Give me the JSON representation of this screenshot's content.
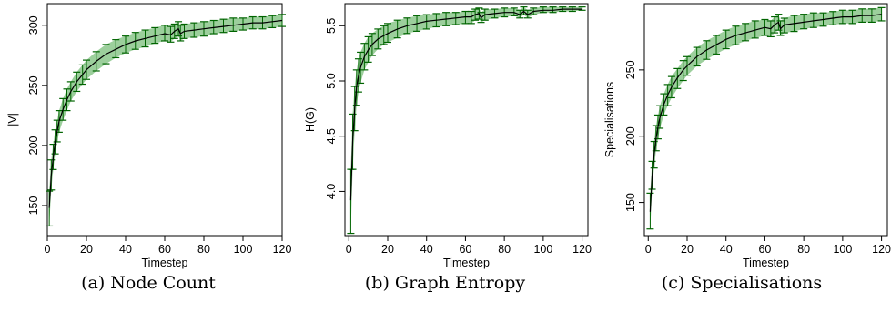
{
  "chart_data": [
    {
      "type": "line",
      "caption": "(a) Node Count",
      "xlabel": "Timestep",
      "ylabel": "|V|",
      "xlim": [
        0,
        120
      ],
      "ylim": [
        125,
        318
      ],
      "xticks": [
        0,
        20,
        40,
        60,
        80,
        100,
        120
      ],
      "yticks": [
        150,
        200,
        250,
        300
      ],
      "colors": {
        "line": "#000000",
        "band": "#4aa84a",
        "errorbar": "#006400"
      },
      "series": [
        {
          "x": [
            1,
            2,
            3,
            4,
            5,
            6,
            8,
            10,
            12,
            15,
            18,
            20,
            25,
            30,
            35,
            40,
            45,
            50,
            55,
            60,
            63,
            65,
            67,
            68,
            70,
            75,
            80,
            85,
            90,
            95,
            100,
            105,
            110,
            115,
            120
          ],
          "y": [
            148,
            175,
            190,
            203,
            212,
            220,
            230,
            238,
            245,
            253,
            259,
            263,
            270,
            276,
            280,
            284,
            287,
            289,
            291,
            293,
            292,
            295,
            297,
            293,
            295,
            296,
            297,
            298,
            299,
            300,
            301,
            302,
            302,
            303,
            304
          ],
          "ylow": [
            133,
            163,
            180,
            193,
            203,
            211,
            221,
            229,
            237,
            245,
            251,
            255,
            262,
            268,
            273,
            277,
            280,
            282,
            285,
            287,
            286,
            289,
            291,
            287,
            289,
            290,
            291,
            293,
            294,
            295,
            296,
            297,
            297,
            298,
            299
          ],
          "yhigh": [
            162,
            188,
            201,
            213,
            221,
            229,
            239,
            247,
            253,
            261,
            267,
            271,
            278,
            284,
            288,
            291,
            294,
            296,
            298,
            300,
            299,
            301,
            303,
            300,
            301,
            302,
            303,
            304,
            305,
            306,
            306,
            307,
            307,
            308,
            309
          ]
        }
      ]
    },
    {
      "type": "line",
      "caption": "(b) Graph Entropy",
      "xlabel": "Timestep",
      "ylabel": "H(G)",
      "xlim": [
        -2,
        123
      ],
      "ylim": [
        3.6,
        5.7
      ],
      "xticks": [
        0,
        20,
        40,
        60,
        80,
        100,
        120
      ],
      "yticks": [
        "4.0",
        "4.5",
        "5.0",
        "5.5"
      ],
      "colors": {
        "line": "#000000",
        "band": "#4aa84a",
        "errorbar": "#006400"
      },
      "series": [
        {
          "x": [
            1,
            2,
            3,
            4,
            5,
            6,
            8,
            10,
            12,
            15,
            18,
            20,
            25,
            30,
            35,
            40,
            45,
            50,
            55,
            60,
            63,
            65,
            67,
            68,
            70,
            75,
            80,
            85,
            88,
            90,
            92,
            95,
            100,
            105,
            110,
            115,
            120
          ],
          "y": [
            3.92,
            4.45,
            4.75,
            4.95,
            5.05,
            5.12,
            5.22,
            5.28,
            5.33,
            5.38,
            5.41,
            5.43,
            5.47,
            5.5,
            5.52,
            5.54,
            5.55,
            5.56,
            5.57,
            5.58,
            5.58,
            5.6,
            5.61,
            5.57,
            5.6,
            5.61,
            5.62,
            5.62,
            5.6,
            5.63,
            5.6,
            5.63,
            5.64,
            5.64,
            5.65,
            5.65,
            5.65
          ],
          "ylow": [
            3.62,
            4.2,
            4.55,
            4.78,
            4.9,
            4.98,
            5.1,
            5.17,
            5.23,
            5.29,
            5.33,
            5.35,
            5.39,
            5.43,
            5.45,
            5.47,
            5.49,
            5.5,
            5.51,
            5.52,
            5.52,
            5.55,
            5.56,
            5.53,
            5.55,
            5.57,
            5.58,
            5.59,
            5.57,
            5.6,
            5.57,
            5.6,
            5.62,
            5.62,
            5.63,
            5.63,
            5.64
          ],
          "yhigh": [
            4.2,
            4.7,
            4.95,
            5.1,
            5.2,
            5.26,
            5.34,
            5.4,
            5.43,
            5.47,
            5.5,
            5.52,
            5.55,
            5.57,
            5.59,
            5.6,
            5.61,
            5.62,
            5.62,
            5.63,
            5.63,
            5.65,
            5.66,
            5.62,
            5.65,
            5.65,
            5.66,
            5.66,
            5.64,
            5.67,
            5.64,
            5.66,
            5.67,
            5.67,
            5.67,
            5.67,
            5.67
          ]
        }
      ]
    },
    {
      "type": "line",
      "caption": "(c) Specialisations",
      "xlabel": "Timestep",
      "ylabel": "Specialisations",
      "xlim": [
        -2,
        123
      ],
      "ylim": [
        125,
        300
      ],
      "xticks": [
        0,
        20,
        40,
        60,
        80,
        100,
        120
      ],
      "yticks": [
        150,
        200,
        250
      ],
      "colors": {
        "line": "#000000",
        "band": "#4aa84a",
        "errorbar": "#006400"
      },
      "series": [
        {
          "x": [
            1,
            2,
            3,
            4,
            5,
            6,
            8,
            10,
            12,
            15,
            18,
            20,
            25,
            30,
            35,
            40,
            45,
            50,
            55,
            60,
            63,
            65,
            67,
            68,
            70,
            75,
            80,
            85,
            90,
            95,
            100,
            105,
            110,
            115,
            120
          ],
          "y": [
            143,
            170,
            186,
            198,
            207,
            214,
            224,
            231,
            237,
            244,
            250,
            253,
            260,
            265,
            269,
            273,
            276,
            278,
            280,
            282,
            281,
            284,
            286,
            281,
            284,
            285,
            286,
            287,
            288,
            289,
            290,
            290,
            291,
            291,
            292
          ],
          "ylow": [
            130,
            160,
            176,
            189,
            198,
            206,
            216,
            223,
            229,
            236,
            242,
            246,
            253,
            258,
            262,
            266,
            269,
            272,
            274,
            276,
            275,
            278,
            280,
            276,
            278,
            279,
            281,
            282,
            283,
            284,
            285,
            285,
            286,
            286,
            287
          ],
          "yhigh": [
            157,
            181,
            196,
            208,
            216,
            223,
            232,
            239,
            245,
            251,
            257,
            260,
            267,
            272,
            276,
            280,
            283,
            285,
            287,
            288,
            287,
            290,
            292,
            287,
            289,
            291,
            292,
            293,
            293,
            294,
            295,
            295,
            296,
            296,
            297
          ]
        }
      ]
    }
  ]
}
